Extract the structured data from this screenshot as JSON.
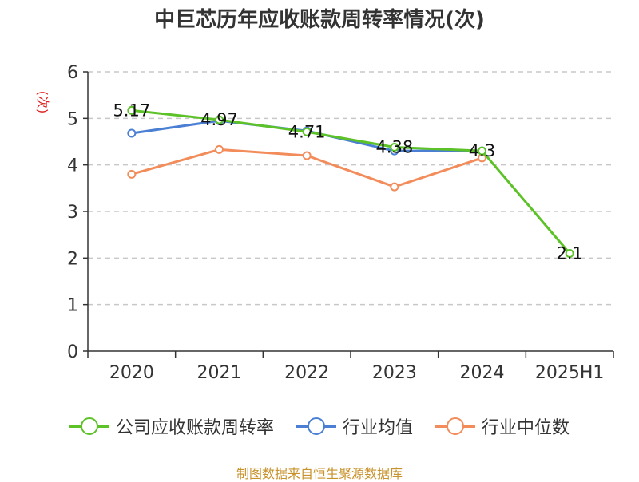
{
  "chart_data": {
    "type": "line",
    "title": "中巨芯历年应收账款周转率情况(次)",
    "ylabel": "(次)",
    "xlabel": "",
    "categories": [
      "2020",
      "2021",
      "2022",
      "2023",
      "2024",
      "2025H1"
    ],
    "ylim": [
      0,
      6
    ],
    "yticks": [
      "0",
      "1",
      "2",
      "3",
      "4",
      "5",
      "6"
    ],
    "grid": "horizontal-dashed",
    "legend_position": "bottom",
    "series": [
      {
        "name": "公司应收账款周转率",
        "color": "#5cc228",
        "values": [
          5.17,
          4.97,
          4.71,
          4.38,
          4.3,
          2.1
        ],
        "labels": [
          "5.17",
          "4.97",
          "4.71",
          "4.38",
          "4.3",
          "2.1"
        ]
      },
      {
        "name": "行业均值",
        "color": "#4a7fd4",
        "values": [
          4.68,
          4.95,
          4.73,
          4.3,
          4.3,
          null
        ]
      },
      {
        "name": "行业中位数",
        "color": "#f28c5a",
        "values": [
          3.8,
          4.33,
          4.2,
          3.53,
          4.15,
          null
        ]
      }
    ]
  },
  "source": "制图数据来自恒生聚源数据库"
}
